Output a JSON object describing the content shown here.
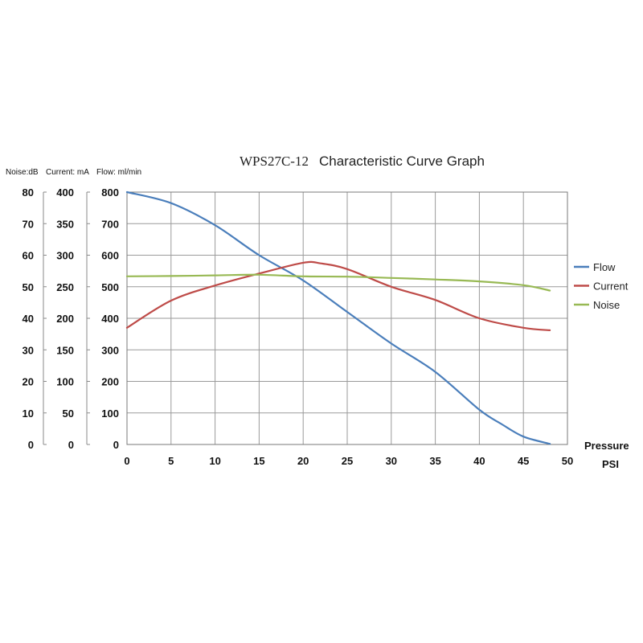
{
  "chart_data": {
    "type": "line",
    "title": {
      "model": "WPS27C-12",
      "text": "Characteristic Curve Graph"
    },
    "unit_labels": {
      "noise": "Noise:dB",
      "current": "Current: mA",
      "flow": "Flow: ml/min"
    },
    "xlabel": [
      "Pressure",
      "PSI"
    ],
    "xlim": [
      0,
      50
    ],
    "x_ticks": [
      0,
      5,
      10,
      15,
      20,
      25,
      30,
      35,
      40,
      45,
      50
    ],
    "y_axes": {
      "noise": {
        "ylim": [
          0,
          80
        ],
        "ticks": [
          0,
          10,
          20,
          30,
          40,
          50,
          60,
          70,
          80
        ]
      },
      "current": {
        "ylim": [
          0,
          400
        ],
        "ticks": [
          0,
          50,
          100,
          150,
          200,
          250,
          300,
          350,
          400
        ]
      },
      "flow": {
        "ylim": [
          0,
          800
        ],
        "ticks": [
          0,
          100,
          200,
          300,
          400,
          500,
          600,
          700,
          800
        ]
      }
    },
    "grid": true,
    "legend": "right",
    "series": [
      {
        "name": "Flow",
        "axis": "flow",
        "color": "#4a7ebb",
        "x": [
          0,
          5,
          10,
          15,
          20,
          25,
          30,
          35,
          40,
          42.5,
          45,
          48
        ],
        "y": [
          800,
          765,
          695,
          600,
          520,
          420,
          320,
          230,
          110,
          65,
          25,
          2
        ]
      },
      {
        "name": "Current",
        "axis": "current",
        "color": "#be4b48",
        "x": [
          0,
          5,
          10,
          15,
          20,
          22,
          25,
          30,
          35,
          40,
          45,
          48
        ],
        "y": [
          185,
          228,
          252,
          271,
          288,
          287,
          278,
          250,
          229,
          200,
          185,
          181
        ]
      },
      {
        "name": "Noise",
        "axis": "noise",
        "color": "#98b954",
        "x": [
          0,
          5,
          10,
          15,
          20,
          25,
          30,
          35,
          40,
          45,
          48
        ],
        "y": [
          53.3,
          53.4,
          53.6,
          53.8,
          53.3,
          53.2,
          52.8,
          52.3,
          51.7,
          50.5,
          48.8
        ]
      }
    ]
  }
}
